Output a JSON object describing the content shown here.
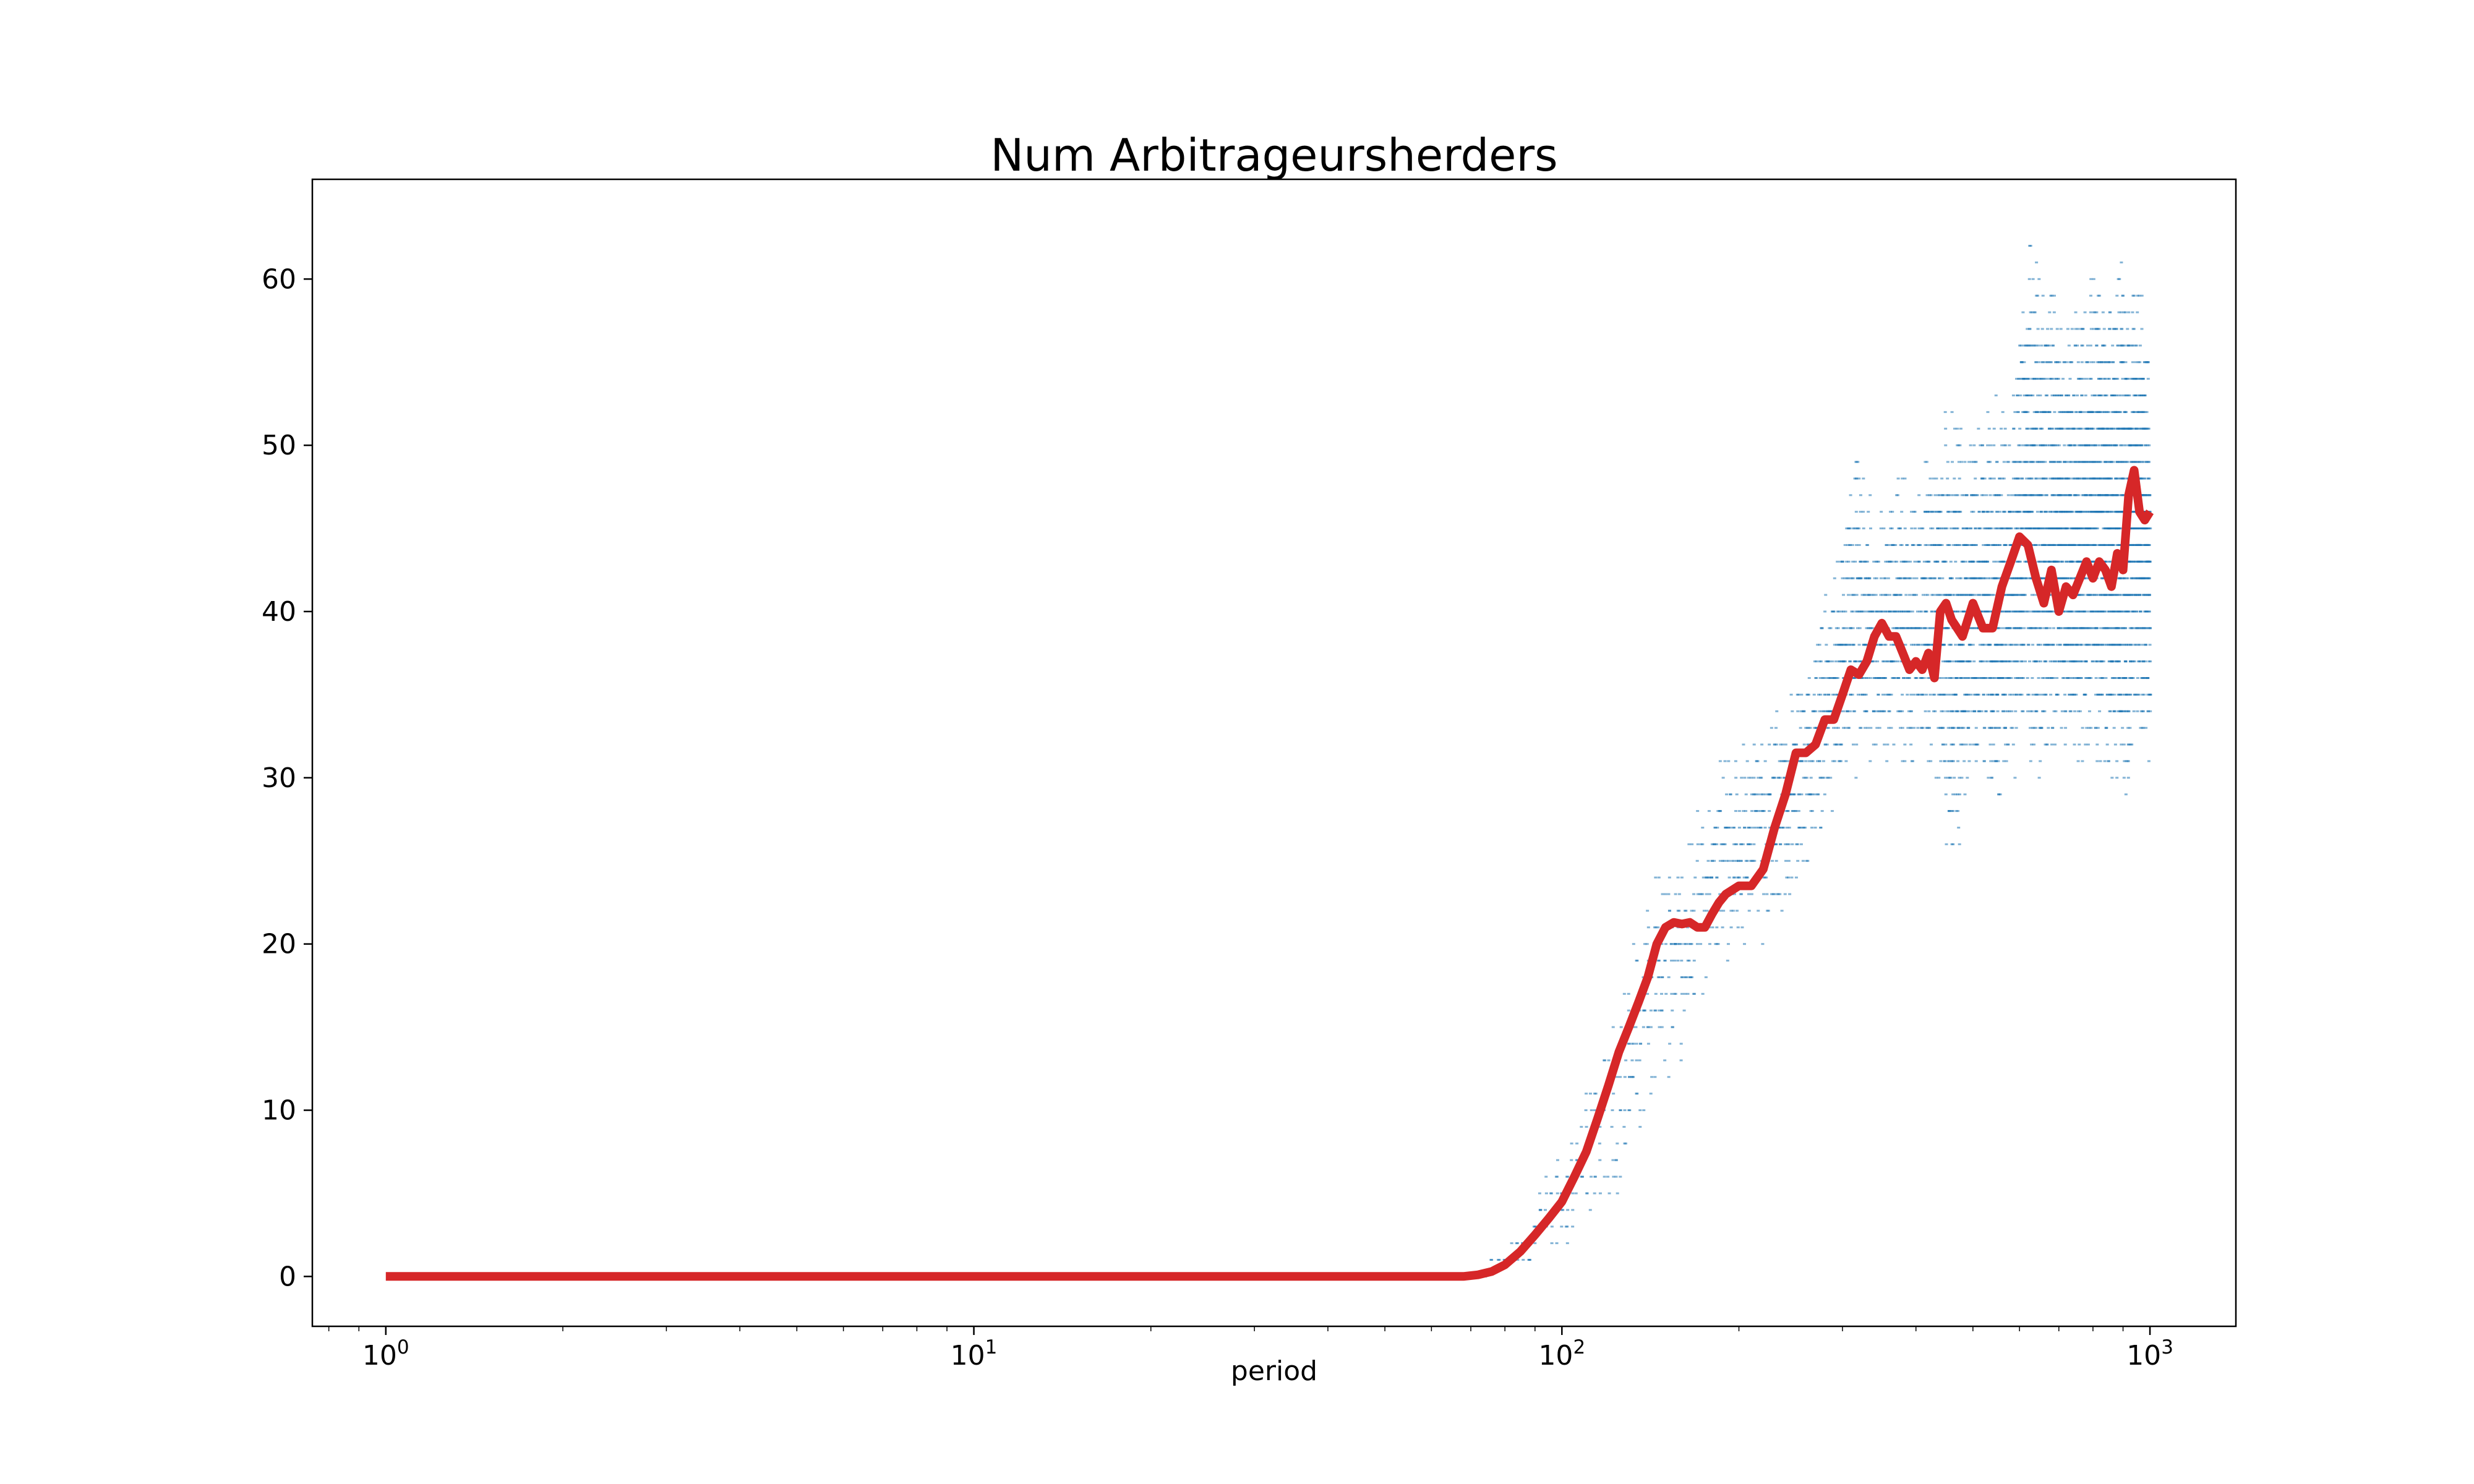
{
  "chart_data": {
    "type": "scatter",
    "title": "Num Arbitrageursherders",
    "xlabel": "period",
    "ylabel": "",
    "xscale": "log",
    "xlim": [
      0.75,
      1400
    ],
    "ylim": [
      -3,
      66
    ],
    "x_ticks": [
      {
        "value": 1,
        "base": "10",
        "exp": "0"
      },
      {
        "value": 10,
        "base": "10",
        "exp": "1"
      },
      {
        "value": 100,
        "base": "10",
        "exp": "2"
      },
      {
        "value": 1000,
        "base": "10",
        "exp": "3"
      }
    ],
    "y_ticks": [
      0,
      10,
      20,
      30,
      40,
      50,
      60
    ],
    "grid": false,
    "colors": {
      "scatter": "#1f77b4",
      "mean_line": "#d62728"
    },
    "series": [
      {
        "kind": "scatter",
        "description_points": "individual simulation runs (small dots), bands between min and max",
        "x": [
          70,
          75,
          80,
          85,
          90,
          95,
          100,
          110,
          120,
          130,
          140,
          150,
          160,
          170,
          180,
          190,
          200,
          220,
          240,
          260,
          280,
          300,
          320,
          340,
          360,
          380,
          400,
          430,
          460,
          500,
          540,
          580,
          620,
          660,
          700,
          750,
          800,
          850,
          900,
          950,
          1000
        ],
        "min": [
          0,
          0,
          0,
          0,
          0,
          1,
          1,
          2,
          4,
          6,
          8,
          12,
          13,
          15,
          17,
          18,
          19,
          20,
          21,
          24,
          27,
          27,
          28,
          30,
          30,
          30,
          31,
          30,
          23,
          29,
          28,
          29,
          31,
          28,
          31,
          30,
          30,
          30,
          27,
          32,
          31
        ],
        "max": [
          0,
          1,
          2,
          3,
          5,
          7,
          9,
          12,
          15,
          20,
          24,
          26,
          27,
          28,
          30,
          33,
          33,
          34,
          35,
          37,
          42,
          45,
          52,
          47,
          48,
          50,
          47,
          52,
          54,
          52,
          54,
          52,
          63,
          62,
          60,
          58,
          61,
          60,
          62,
          60,
          57
        ]
      },
      {
        "kind": "line",
        "description_points": "mean across runs",
        "x": [
          1,
          5,
          20,
          50,
          68,
          72,
          76,
          80,
          85,
          90,
          95,
          100,
          105,
          110,
          115,
          120,
          125,
          130,
          135,
          140,
          145,
          150,
          155,
          160,
          165,
          170,
          175,
          180,
          185,
          190,
          200,
          210,
          220,
          230,
          240,
          250,
          260,
          270,
          280,
          290,
          300,
          310,
          320,
          330,
          340,
          350,
          360,
          370,
          380,
          390,
          400,
          410,
          420,
          430,
          440,
          450,
          460,
          470,
          480,
          490,
          500,
          520,
          540,
          560,
          580,
          600,
          620,
          640,
          660,
          680,
          700,
          720,
          740,
          760,
          780,
          800,
          820,
          840,
          860,
          880,
          900,
          920,
          940,
          960,
          980,
          1000
        ],
        "y": [
          0,
          0,
          0,
          0,
          0,
          0.1,
          0.3,
          0.7,
          1.5,
          2.5,
          3.5,
          4.5,
          6,
          7.5,
          9.5,
          11.5,
          13.5,
          15,
          16.5,
          18,
          20,
          21,
          21.3,
          21.2,
          21.3,
          21,
          21,
          21.8,
          22.5,
          23,
          23.5,
          23.5,
          24.5,
          27,
          29,
          31.5,
          31.5,
          32,
          33.5,
          33.5,
          35,
          36.5,
          36.2,
          37,
          38.5,
          39.3,
          38.5,
          38.5,
          37.5,
          36.5,
          37,
          36.5,
          37.5,
          36,
          40,
          40.5,
          39.5,
          39,
          38.5,
          39.5,
          40.5,
          39,
          39,
          41.5,
          43,
          44.5,
          44,
          42,
          40.5,
          42.5,
          40,
          41.5,
          41,
          42,
          43,
          42,
          43,
          42.5,
          41.5,
          43.5,
          42.5,
          47,
          48.5,
          46,
          45.5,
          46
        ]
      }
    ]
  }
}
